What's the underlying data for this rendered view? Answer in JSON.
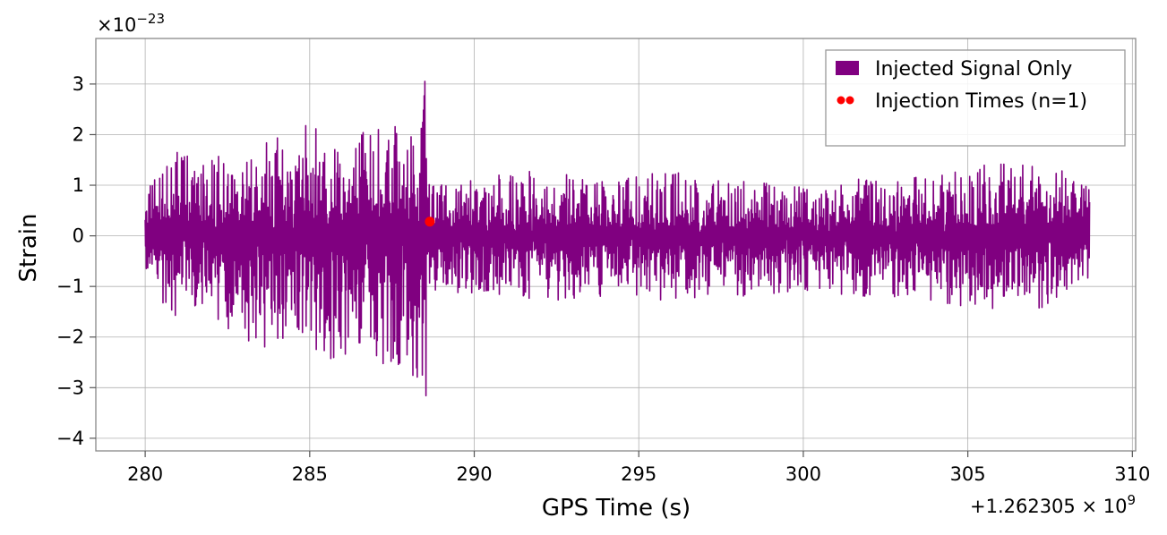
{
  "chart_data": {
    "type": "line",
    "xlabel": "GPS Time (s)",
    "ylabel": "Strain",
    "x_offset_label": "+1.262305",
    "x_offset_exp": "9",
    "y_scale_label": "×10",
    "y_scale_exp": "−23",
    "xlim": [
      278.5,
      310.1
    ],
    "ylim": [
      -4.25,
      3.9
    ],
    "x_ticks": [
      280,
      285,
      290,
      295,
      300,
      305,
      310
    ],
    "x_tick_labels": [
      "280",
      "285",
      "290",
      "295",
      "300",
      "305",
      "310"
    ],
    "y_ticks": [
      -4,
      -3,
      -2,
      -1,
      0,
      1,
      2,
      3
    ],
    "y_tick_labels": [
      "−4",
      "−3",
      "−2",
      "−1",
      "0",
      "1",
      "2",
      "3"
    ],
    "grid": true,
    "legend_position": "top-right",
    "series": [
      {
        "name": "Injected Signal Only",
        "color": "#800080",
        "kind": "strain",
        "envelope": {
          "x": [
            280.0,
            280.5,
            281.0,
            281.5,
            282.0,
            282.5,
            283.0,
            283.5,
            284.0,
            284.5,
            285.0,
            285.5,
            286.0,
            286.5,
            287.0,
            287.5,
            288.0,
            288.3,
            288.5,
            288.65,
            289.0,
            290.0,
            292.0,
            294.0,
            296.0,
            298.0,
            300.0,
            302.0,
            304.0,
            306.0,
            308.0,
            308.7
          ],
          "upper": [
            1.0,
            1.4,
            1.8,
            1.5,
            1.7,
            1.6,
            1.5,
            1.8,
            2.0,
            2.2,
            2.3,
            2.1,
            1.8,
            2.0,
            2.3,
            2.5,
            2.6,
            3.2,
            3.5,
            1.0,
            1.1,
            1.2,
            1.3,
            1.1,
            1.3,
            1.1,
            1.0,
            1.2,
            1.2,
            1.5,
            1.3,
            1.0
          ],
          "lower": [
            -0.9,
            -1.5,
            -1.6,
            -1.4,
            -1.6,
            -1.9,
            -2.1,
            -2.2,
            -2.2,
            -2.4,
            -2.3,
            -2.5,
            -2.4,
            -2.5,
            -2.5,
            -2.6,
            -2.6,
            -3.3,
            -3.8,
            -1.1,
            -1.1,
            -1.2,
            -1.3,
            -1.2,
            -1.3,
            -1.2,
            -1.1,
            -1.2,
            -1.3,
            -1.5,
            -1.4,
            -0.9
          ]
        }
      },
      {
        "name": "Injection Times (n=1)",
        "color": "#ff0000",
        "kind": "scatter",
        "points": [
          {
            "x": 288.65,
            "y": 0.28
          }
        ]
      }
    ]
  }
}
